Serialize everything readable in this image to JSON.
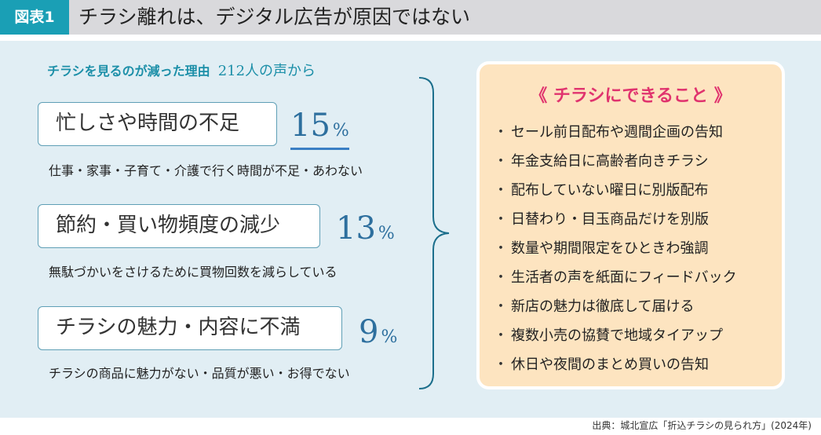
{
  "header": {
    "figure_label": "図表1",
    "title": "チラシ離れは、デジタル広告が原因ではない"
  },
  "reasons": {
    "title": "チラシを見るのが減った理由",
    "count": "212人の声から",
    "items": [
      {
        "label": "忙しさや時間の不足",
        "percent_num": "15",
        "percent_unit": "%",
        "desc": "仕事・家事・子育て・介護で行く時間が不足・あわない"
      },
      {
        "label": "節約・買い物頻度の減少",
        "percent_num": "13",
        "percent_unit": "%",
        "desc": "無駄づかいをさけるために買物回数を減らしている"
      },
      {
        "label": "チラシの魅力・内容に不満",
        "percent_num": "9",
        "percent_unit": "%",
        "desc": "チラシの商品に魅力がない・品質が悪い・お得でない"
      }
    ]
  },
  "can_do": {
    "title": "《 チラシにできること 》",
    "bullet": "・",
    "items": [
      "セール前日配布や週間企画の告知",
      "年金支給日に高齢者向きチラシ",
      "配布していない曜日に別版配布",
      "日替わり・目玉商品だけを別版",
      "数量や期間限定をひときわ強調",
      "生活者の声を紙面にフィードバック",
      "新店の魅力は徹底して届ける",
      "複数小売の協賛で地域タイアップ",
      "休日や夜間のまとめ買いの告知"
    ]
  },
  "source": "出典：城北宣広「折込チラシの見られ方」(2024年)",
  "colors": {
    "accent": "#1a9fb5",
    "highlight": "#e0336e",
    "panel": "#e1eef4",
    "list_bg": "#fde4c0"
  }
}
